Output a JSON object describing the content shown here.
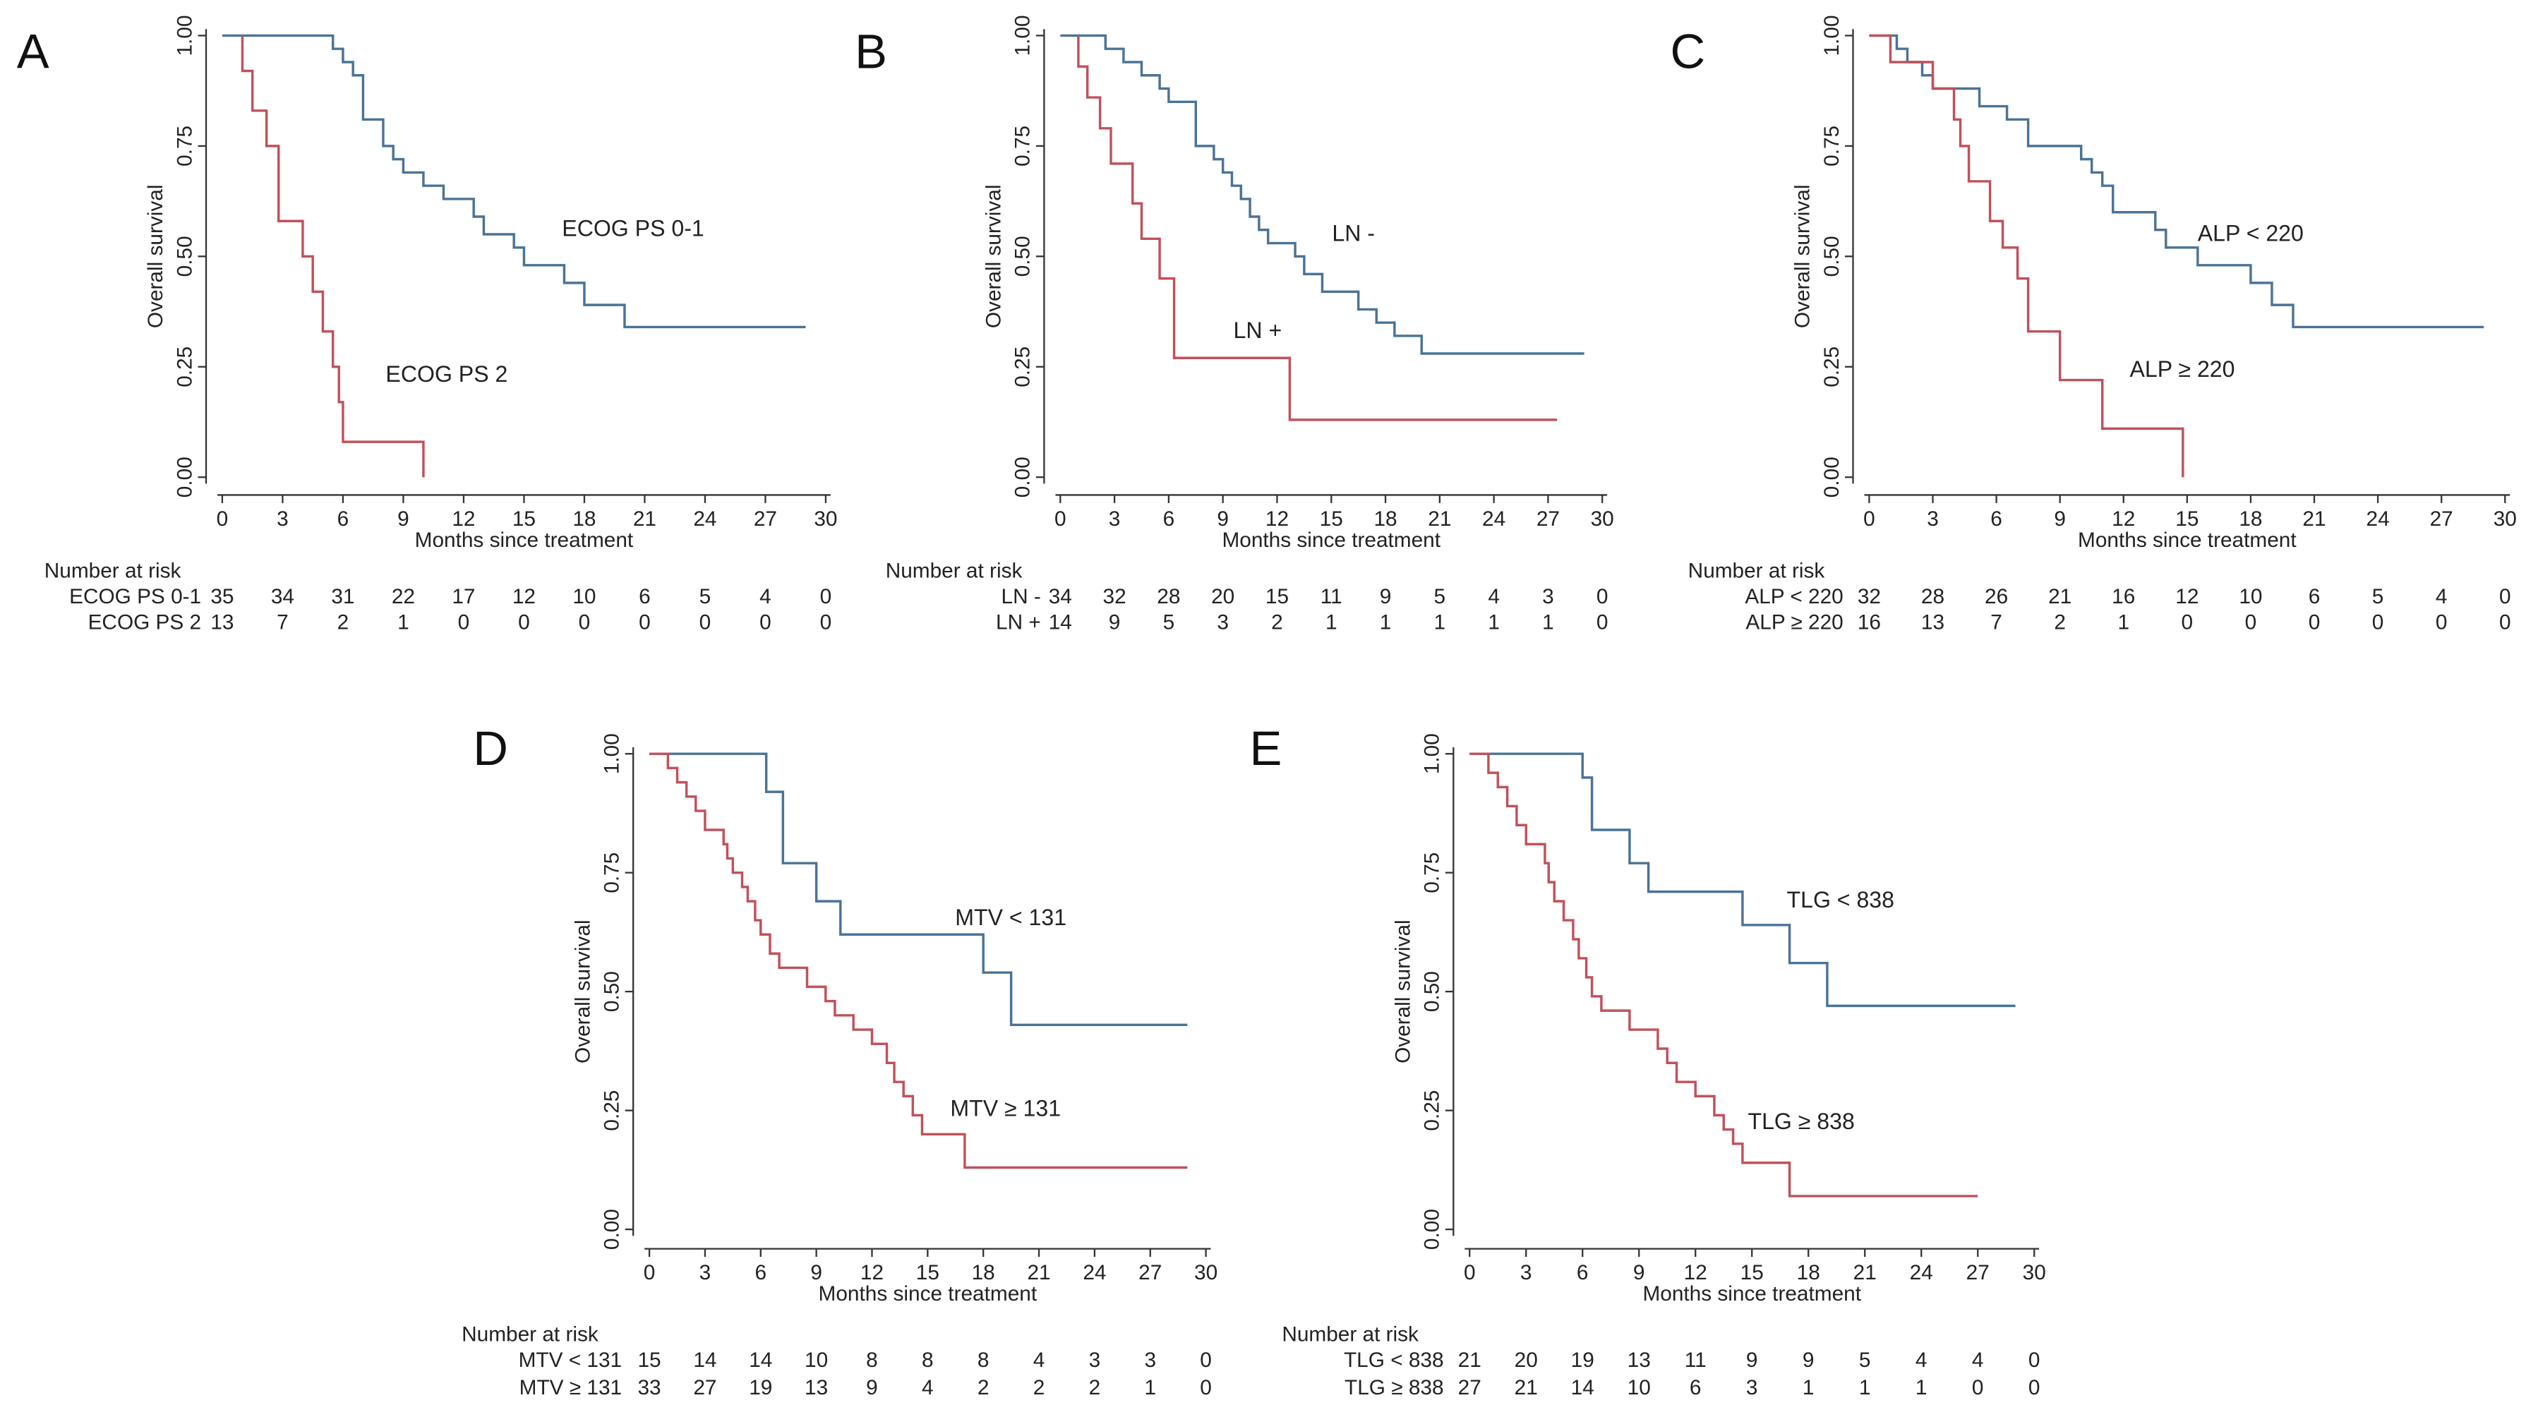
{
  "chart_data": [
    {
      "type": "line",
      "panel_label": "A",
      "ylabel": "Overall survival",
      "xlabel": "Months since treatment",
      "xticks": [
        "0",
        "3",
        "6",
        "9",
        "12",
        "15",
        "18",
        "21",
        "24",
        "27",
        "30"
      ],
      "yticks": [
        "0.00",
        "0.25",
        "0.50",
        "0.75",
        "1.00"
      ],
      "xlim": [
        0,
        30
      ],
      "ylim": [
        0,
        1
      ],
      "risk_header": "Number at risk",
      "series": [
        {
          "name": "ECOG PS 0-1",
          "color": "#4a7396",
          "steps": [
            [
              0,
              1
            ],
            [
              5.5,
              0.97
            ],
            [
              6,
              0.94
            ],
            [
              6.5,
              0.91
            ],
            [
              7,
              0.81
            ],
            [
              8,
              0.75
            ],
            [
              8.5,
              0.72
            ],
            [
              9,
              0.69
            ],
            [
              10,
              0.66
            ],
            [
              11,
              0.63
            ],
            [
              12.5,
              0.59
            ],
            [
              13,
              0.55
            ],
            [
              14.5,
              0.52
            ],
            [
              15,
              0.48
            ],
            [
              17,
              0.44
            ],
            [
              18,
              0.39
            ],
            [
              20,
              0.34
            ],
            [
              29,
              0.34
            ]
          ],
          "risk": [
            "35",
            "34",
            "31",
            "22",
            "17",
            "12",
            "10",
            "6",
            "5",
            "4",
            "0"
          ]
        },
        {
          "name": "ECOG PS 2",
          "color": "#c0515b",
          "steps": [
            [
              1,
              1
            ],
            [
              1,
              0.92
            ],
            [
              1.5,
              0.83
            ],
            [
              2.2,
              0.75
            ],
            [
              2.8,
              0.58
            ],
            [
              4,
              0.5
            ],
            [
              4.5,
              0.42
            ],
            [
              5,
              0.33
            ],
            [
              5.5,
              0.25
            ],
            [
              5.8,
              0.17
            ],
            [
              6,
              0.08
            ],
            [
              10,
              0
            ],
            [
              10,
              0
            ]
          ],
          "risk": [
            "13",
            "7",
            "2",
            "1",
            "0",
            "0",
            "0",
            "0",
            "0",
            "0",
            "0"
          ]
        }
      ]
    },
    {
      "type": "line",
      "panel_label": "B",
      "ylabel": "Overall survival",
      "xlabel": "Months since treatment",
      "xticks": [
        "0",
        "3",
        "6",
        "9",
        "12",
        "15",
        "18",
        "21",
        "24",
        "27",
        "30"
      ],
      "yticks": [
        "0.00",
        "0.25",
        "0.50",
        "0.75",
        "1.00"
      ],
      "xlim": [
        0,
        30
      ],
      "ylim": [
        0,
        1
      ],
      "risk_header": "Number at risk",
      "series": [
        {
          "name": "LN -",
          "color": "#4a7396",
          "steps": [
            [
              0,
              1
            ],
            [
              2.5,
              0.97
            ],
            [
              3.5,
              0.94
            ],
            [
              4.5,
              0.91
            ],
            [
              5.5,
              0.88
            ],
            [
              6,
              0.85
            ],
            [
              7.5,
              0.79
            ],
            [
              7.5,
              0.75
            ],
            [
              8.5,
              0.72
            ],
            [
              9,
              0.69
            ],
            [
              9.5,
              0.66
            ],
            [
              10,
              0.63
            ],
            [
              10.5,
              0.59
            ],
            [
              11,
              0.56
            ],
            [
              11.5,
              0.53
            ],
            [
              13,
              0.5
            ],
            [
              13.5,
              0.46
            ],
            [
              14.5,
              0.42
            ],
            [
              16.5,
              0.38
            ],
            [
              17.5,
              0.35
            ],
            [
              18.5,
              0.32
            ],
            [
              20,
              0.28
            ],
            [
              29,
              0.28
            ]
          ],
          "risk": [
            "34",
            "32",
            "28",
            "20",
            "15",
            "11",
            "9",
            "5",
            "4",
            "3",
            "0"
          ]
        },
        {
          "name": "LN +",
          "color": "#c0515b",
          "steps": [
            [
              1,
              1
            ],
            [
              1,
              0.93
            ],
            [
              1.5,
              0.86
            ],
            [
              2.2,
              0.79
            ],
            [
              2.8,
              0.71
            ],
            [
              4,
              0.62
            ],
            [
              4.5,
              0.54
            ],
            [
              5.5,
              0.45
            ],
            [
              6.3,
              0.27
            ],
            [
              12.7,
              0.13
            ],
            [
              27.5,
              0.13
            ]
          ],
          "risk": [
            "14",
            "9",
            "5",
            "3",
            "2",
            "1",
            "1",
            "1",
            "1",
            "1",
            "0"
          ]
        }
      ]
    },
    {
      "type": "line",
      "panel_label": "C",
      "ylabel": "Overall survival",
      "xlabel": "Months since treatment",
      "xticks": [
        "0",
        "3",
        "6",
        "9",
        "12",
        "15",
        "18",
        "21",
        "24",
        "27",
        "30"
      ],
      "yticks": [
        "0.00",
        "0.25",
        "0.50",
        "0.75",
        "1.00"
      ],
      "xlim": [
        0,
        30
      ],
      "ylim": [
        0,
        1
      ],
      "risk_header": "Number at risk",
      "series": [
        {
          "name": "ALP < 220",
          "color": "#4a7396",
          "steps": [
            [
              0,
              1
            ],
            [
              1.3,
              0.97
            ],
            [
              1.8,
              0.94
            ],
            [
              2.5,
              0.91
            ],
            [
              3,
              0.88
            ],
            [
              5.2,
              0.84
            ],
            [
              6.5,
              0.81
            ],
            [
              7.5,
              0.75
            ],
            [
              10,
              0.72
            ],
            [
              10.5,
              0.69
            ],
            [
              11,
              0.66
            ],
            [
              11.5,
              0.6
            ],
            [
              13.5,
              0.56
            ],
            [
              14,
              0.52
            ],
            [
              15.5,
              0.48
            ],
            [
              18,
              0.44
            ],
            [
              19,
              0.39
            ],
            [
              20,
              0.34
            ],
            [
              29,
              0.34
            ]
          ],
          "risk": [
            "32",
            "28",
            "26",
            "21",
            "16",
            "12",
            "10",
            "6",
            "5",
            "4",
            "0"
          ]
        },
        {
          "name": "ALP ≥ 220",
          "color": "#c0515b",
          "steps": [
            [
              0,
              1
            ],
            [
              1,
              0.94
            ],
            [
              3,
              0.88
            ],
            [
              4,
              0.81
            ],
            [
              4.3,
              0.75
            ],
            [
              4.7,
              0.67
            ],
            [
              5.7,
              0.58
            ],
            [
              6.3,
              0.52
            ],
            [
              7,
              0.45
            ],
            [
              7.5,
              0.33
            ],
            [
              9,
              0.22
            ],
            [
              11,
              0.11
            ],
            [
              14.8,
              0
            ],
            [
              14.8,
              0
            ]
          ],
          "risk": [
            "16",
            "13",
            "7",
            "2",
            "1",
            "0",
            "0",
            "0",
            "0",
            "0",
            "0"
          ]
        }
      ]
    },
    {
      "type": "line",
      "panel_label": "D",
      "ylabel": "Overall survival",
      "xlabel": "Months since treatment",
      "xticks": [
        "0",
        "3",
        "6",
        "9",
        "12",
        "15",
        "18",
        "21",
        "24",
        "27",
        "30"
      ],
      "yticks": [
        "0.00",
        "0.25",
        "0.50",
        "0.75",
        "1.00"
      ],
      "xlim": [
        0,
        30
      ],
      "ylim": [
        0,
        1
      ],
      "risk_header": "Number at risk",
      "series": [
        {
          "name": "MTV < 131",
          "color": "#4a7396",
          "steps": [
            [
              0,
              1
            ],
            [
              6.3,
              0.92
            ],
            [
              7.2,
              0.77
            ],
            [
              9,
              0.69
            ],
            [
              10.3,
              0.62
            ],
            [
              18,
              0.54
            ],
            [
              19.5,
              0.43
            ],
            [
              29,
              0.43
            ]
          ],
          "risk": [
            "15",
            "14",
            "14",
            "10",
            "8",
            "8",
            "8",
            "4",
            "3",
            "3",
            "0"
          ]
        },
        {
          "name": "MTV ≥ 131",
          "color": "#c0515b",
          "steps": [
            [
              0,
              1
            ],
            [
              1,
              0.97
            ],
            [
              1.5,
              0.94
            ],
            [
              2,
              0.91
            ],
            [
              2.5,
              0.88
            ],
            [
              3,
              0.84
            ],
            [
              4,
              0.81
            ],
            [
              4.2,
              0.78
            ],
            [
              4.5,
              0.75
            ],
            [
              5,
              0.72
            ],
            [
              5.3,
              0.69
            ],
            [
              5.7,
              0.65
            ],
            [
              6,
              0.62
            ],
            [
              6.5,
              0.58
            ],
            [
              7,
              0.55
            ],
            [
              8.5,
              0.51
            ],
            [
              9.5,
              0.48
            ],
            [
              10,
              0.45
            ],
            [
              11,
              0.42
            ],
            [
              12,
              0.39
            ],
            [
              12.8,
              0.35
            ],
            [
              13.2,
              0.31
            ],
            [
              13.7,
              0.28
            ],
            [
              14.2,
              0.24
            ],
            [
              14.7,
              0.2
            ],
            [
              17,
              0.13
            ],
            [
              29,
              0.13
            ]
          ],
          "risk": [
            "33",
            "27",
            "19",
            "13",
            "9",
            "4",
            "2",
            "2",
            "2",
            "1",
            "0"
          ]
        }
      ]
    },
    {
      "type": "line",
      "panel_label": "E",
      "ylabel": "Overall survival",
      "xlabel": "Months since treatment",
      "xticks": [
        "0",
        "3",
        "6",
        "9",
        "12",
        "15",
        "18",
        "21",
        "24",
        "27",
        "30"
      ],
      "yticks": [
        "0.00",
        "0.25",
        "0.50",
        "0.75",
        "1.00"
      ],
      "xlim": [
        0,
        30
      ],
      "ylim": [
        0,
        1
      ],
      "risk_header": "Number at risk",
      "series": [
        {
          "name": "TLG < 838",
          "color": "#4a7396",
          "steps": [
            [
              0,
              1
            ],
            [
              6,
              0.95
            ],
            [
              6.5,
              0.84
            ],
            [
              8.5,
              0.77
            ],
            [
              9.5,
              0.71
            ],
            [
              14.5,
              0.64
            ],
            [
              17,
              0.56
            ],
            [
              19,
              0.47
            ],
            [
              29,
              0.47
            ]
          ],
          "risk": [
            "21",
            "20",
            "19",
            "13",
            "11",
            "9",
            "9",
            "5",
            "4",
            "4",
            "0"
          ]
        },
        {
          "name": "TLG ≥ 838",
          "color": "#c0515b",
          "steps": [
            [
              0,
              1
            ],
            [
              1,
              0.96
            ],
            [
              1.5,
              0.93
            ],
            [
              2,
              0.89
            ],
            [
              2.5,
              0.85
            ],
            [
              3,
              0.81
            ],
            [
              4,
              0.77
            ],
            [
              4.2,
              0.73
            ],
            [
              4.5,
              0.69
            ],
            [
              5,
              0.65
            ],
            [
              5.5,
              0.61
            ],
            [
              5.8,
              0.57
            ],
            [
              6.2,
              0.53
            ],
            [
              6.5,
              0.49
            ],
            [
              7,
              0.46
            ],
            [
              8.5,
              0.42
            ],
            [
              10,
              0.38
            ],
            [
              10.5,
              0.35
            ],
            [
              11,
              0.31
            ],
            [
              12,
              0.28
            ],
            [
              13,
              0.24
            ],
            [
              13.5,
              0.21
            ],
            [
              14,
              0.18
            ],
            [
              14.5,
              0.14
            ],
            [
              17,
              0.07
            ],
            [
              27,
              0.07
            ]
          ],
          "risk": [
            "27",
            "21",
            "14",
            "10",
            "6",
            "3",
            "1",
            "1",
            "1",
            "0",
            "0"
          ]
        }
      ]
    }
  ]
}
